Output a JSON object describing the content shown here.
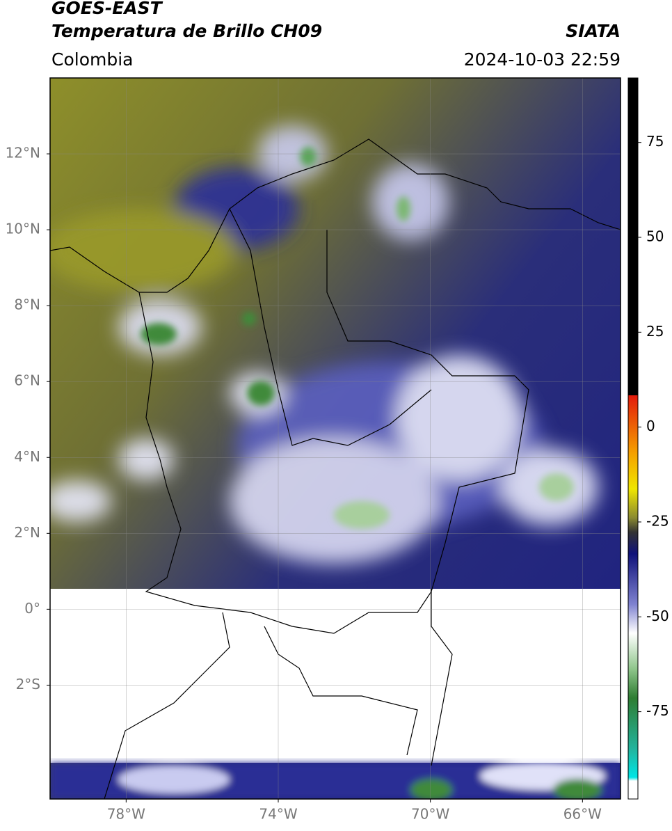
{
  "header": {
    "title": "GOES-EAST",
    "subtitle": "Temperatura de Brillo CH09",
    "source": "SIATA",
    "region": "Colombia",
    "datetime": "2024-10-03 22:59"
  },
  "map": {
    "xlim": [
      -80,
      -65
    ],
    "ylim": [
      -5,
      14
    ],
    "xticks": [
      {
        "value": -78,
        "label": "78°W"
      },
      {
        "value": -74,
        "label": "74°W"
      },
      {
        "value": -70,
        "label": "70°W"
      },
      {
        "value": -66,
        "label": "66°W"
      }
    ],
    "yticks": [
      {
        "value": 12,
        "label": "12°N"
      },
      {
        "value": 10,
        "label": "10°N"
      },
      {
        "value": 8,
        "label": "8°N"
      },
      {
        "value": 6,
        "label": "6°N"
      },
      {
        "value": 4,
        "label": "4°N"
      },
      {
        "value": 2,
        "label": "2°N"
      },
      {
        "value": 0,
        "label": "0°"
      },
      {
        "value": -2,
        "label": "2°S"
      }
    ],
    "grid": true
  },
  "colorbar": {
    "lim": [
      -98,
      92
    ],
    "ticks": [
      75,
      50,
      25,
      0,
      -25,
      -50,
      -75
    ]
  }
}
